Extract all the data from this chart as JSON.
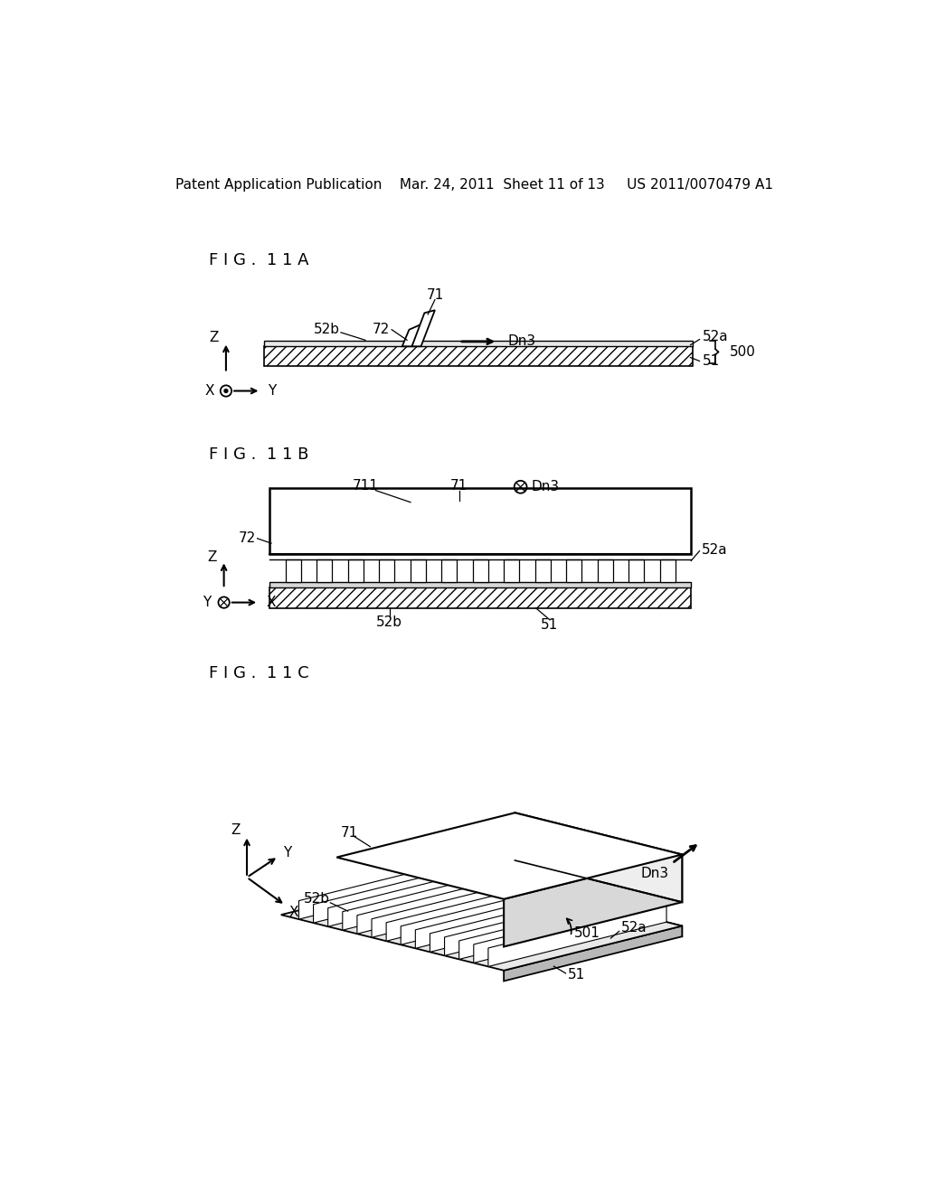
{
  "bg_color": "#ffffff",
  "header": "Patent Application Publication    Mar. 24, 2011  Sheet 11 of 13     US 2011/0070479 A1",
  "fig11a_label": "F I G .  1 1 A",
  "fig11b_label": "F I G .  1 1 B",
  "fig11c_label": "F I G .  1 1 C"
}
